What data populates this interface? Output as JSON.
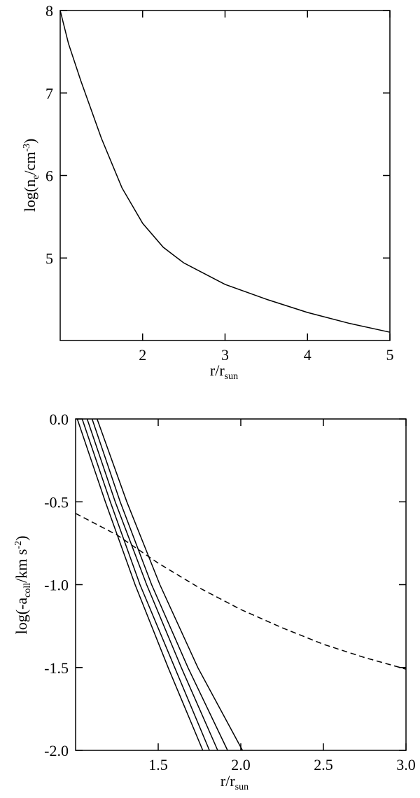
{
  "chart_data": [
    {
      "type": "line",
      "xlabel": [
        "r/r",
        "sun"
      ],
      "ylabel": [
        "log(n",
        "e",
        "/cm",
        "-3",
        ")"
      ],
      "xlim": [
        1,
        5
      ],
      "ylim": [
        4,
        8
      ],
      "xticks": [
        2,
        3,
        4,
        5
      ],
      "yticks": [
        5,
        6,
        7,
        8
      ],
      "series": [
        {
          "color": "#000000",
          "linestyle": "solid",
          "x": [
            1,
            1.1,
            1.25,
            1.5,
            1.75,
            2,
            2.25,
            2.5,
            3,
            3.5,
            4,
            4.5,
            5
          ],
          "values": [
            8.0,
            7.6,
            7.15,
            6.45,
            5.85,
            5.42,
            5.13,
            4.94,
            4.68,
            4.5,
            4.34,
            4.21,
            4.1
          ]
        }
      ]
    },
    {
      "type": "line",
      "xlabel": [
        "r/r",
        "sun"
      ],
      "ylabel": [
        "log(-a",
        "coll",
        "/km s",
        "-2",
        ")"
      ],
      "xlim": [
        1,
        3
      ],
      "ylim": [
        -2,
        0
      ],
      "xticks": [
        1.5,
        {
          "value": 2,
          "label": "2.0"
        },
        2.5,
        {
          "value": 3,
          "label": "3.0"
        }
      ],
      "yticks": [
        {
          "value": -2,
          "label": "-2.0"
        },
        -1.5,
        {
          "value": -1,
          "label": "-1.0"
        },
        -0.5,
        {
          "value": 0,
          "label": "0.0"
        }
      ],
      "series": [
        {
          "color": "#000000",
          "linestyle": "solid",
          "x": [
            1.01,
            1.18,
            1.36,
            1.56,
            1.77
          ],
          "values": [
            0,
            -0.5,
            -1,
            -1.5,
            -2
          ]
        },
        {
          "color": "#000000",
          "linestyle": "solid",
          "x": [
            1.04,
            1.21,
            1.39,
            1.6,
            1.81
          ],
          "values": [
            0,
            -0.5,
            -1,
            -1.5,
            -2
          ]
        },
        {
          "color": "#000000",
          "linestyle": "solid",
          "x": [
            1.07,
            1.24,
            1.43,
            1.64,
            1.86
          ],
          "values": [
            0,
            -0.5,
            -1,
            -1.5,
            -2
          ]
        },
        {
          "color": "#000000",
          "linestyle": "solid",
          "x": [
            1.1,
            1.27,
            1.46,
            1.68,
            1.92
          ],
          "values": [
            0,
            -0.5,
            -1,
            -1.5,
            -2
          ]
        },
        {
          "color": "#000000",
          "linestyle": "solid",
          "x": [
            1.13,
            1.31,
            1.51,
            1.74,
            2.01
          ],
          "values": [
            0,
            -0.5,
            -1,
            -1.5,
            -2
          ]
        },
        {
          "color": "#000000",
          "linestyle": "dashed",
          "x": [
            1,
            1.25,
            1.5,
            1.75,
            2,
            2.25,
            2.5,
            2.75,
            3
          ],
          "values": [
            -0.57,
            -0.7,
            -0.87,
            -1.02,
            -1.15,
            -1.26,
            -1.36,
            -1.44,
            -1.51
          ]
        }
      ]
    }
  ]
}
